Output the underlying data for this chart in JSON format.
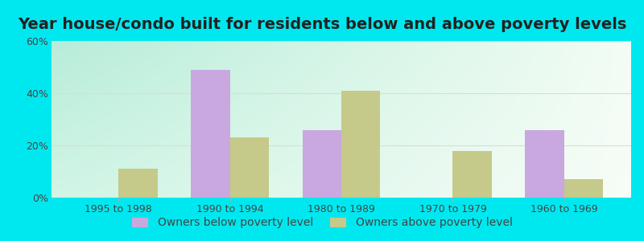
{
  "title": "Year house/condo built for residents below and above poverty levels",
  "categories": [
    "1995 to 1998",
    "1990 to 1994",
    "1980 to 1989",
    "1970 to 1979",
    "1960 to 1969"
  ],
  "below_poverty": [
    0,
    49,
    26,
    0,
    26
  ],
  "above_poverty": [
    11,
    23,
    41,
    18,
    7
  ],
  "below_color": "#c9a8e0",
  "above_color": "#c5c98a",
  "ylim": [
    0,
    60
  ],
  "yticks": [
    0,
    20,
    40,
    60
  ],
  "ytick_labels": [
    "0%",
    "20%",
    "40%",
    "60%"
  ],
  "legend_below": "Owners below poverty level",
  "legend_above": "Owners above poverty level",
  "outer_bg": "#00e8ef",
  "bar_width": 0.35,
  "title_fontsize": 14,
  "tick_fontsize": 9,
  "legend_fontsize": 10,
  "grid_color": "#ddddcc",
  "bg_colors": [
    "#b8e8d8",
    "#f0f8ec",
    "#f8fdf6"
  ]
}
